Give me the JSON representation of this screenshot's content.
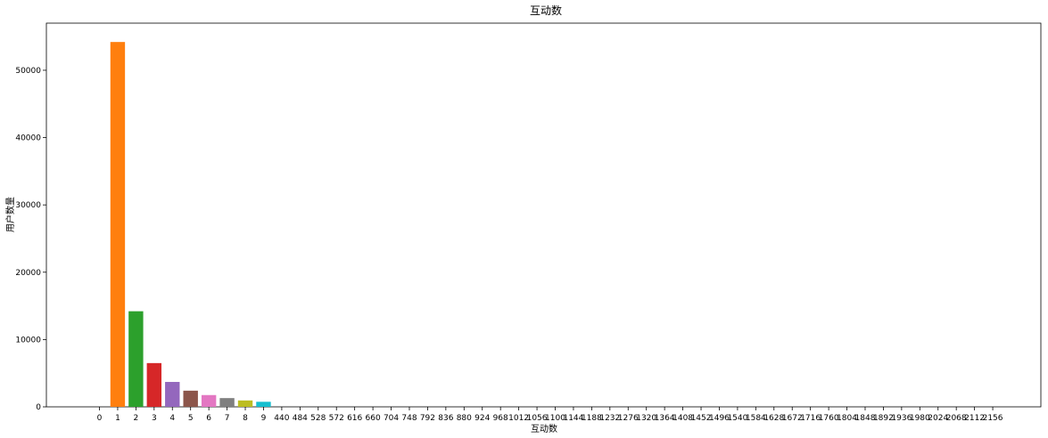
{
  "chart_data": {
    "type": "bar",
    "title": "互动数",
    "xlabel": "互动数",
    "ylabel": "用户数量",
    "ylim": [
      0,
      57000
    ],
    "yticks": [
      0,
      10000,
      20000,
      30000,
      40000,
      50000
    ],
    "grid": false,
    "legend": "none",
    "categories": [
      "0",
      "1",
      "2",
      "3",
      "4",
      "5",
      "6",
      "7",
      "8",
      "9",
      "440",
      "484",
      "528",
      "572",
      "616",
      "660",
      "704",
      "748",
      "792",
      "836",
      "880",
      "924",
      "968",
      "1012",
      "1056",
      "1100",
      "1144",
      "1188",
      "1232",
      "1276",
      "1320",
      "1364",
      "1408",
      "1452",
      "1496",
      "1540",
      "1584",
      "1628",
      "1672",
      "1716",
      "1760",
      "1804",
      "1848",
      "1892",
      "1936",
      "1980",
      "2024",
      "2068",
      "2112",
      "2156"
    ],
    "values": [
      0,
      54200,
      14200,
      6500,
      3700,
      2400,
      1750,
      1300,
      950,
      750,
      0,
      0,
      0,
      0,
      0,
      0,
      0,
      0,
      0,
      0,
      0,
      0,
      0,
      0,
      0,
      0,
      0,
      0,
      0,
      0,
      0,
      0,
      0,
      0,
      0,
      0,
      0,
      0,
      0,
      0,
      0,
      0,
      0,
      0,
      0,
      0,
      0,
      0,
      0,
      0
    ],
    "colors": [
      "#1f77b4",
      "#ff7f0e",
      "#2ca02c",
      "#d62728",
      "#9467bd",
      "#8c564b",
      "#e377c2",
      "#7f7f7f",
      "#bcbd22",
      "#17becf"
    ]
  }
}
